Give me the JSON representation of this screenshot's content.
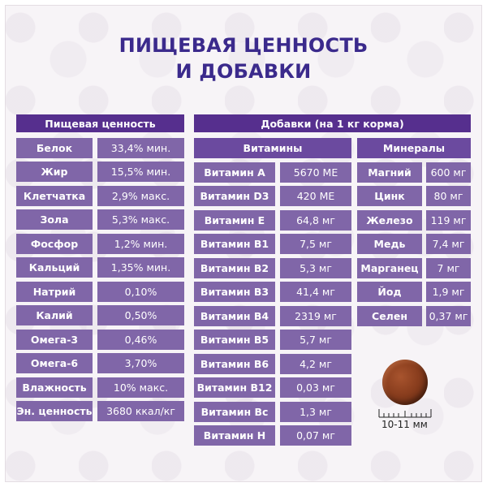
{
  "title": {
    "line1": "ПИЩЕВАЯ ЦЕННОСТЬ",
    "line2": "И ДОБАВКИ"
  },
  "nutrition": {
    "header": "Пищевая ценность",
    "rows": [
      {
        "label": "Белок",
        "value": "33,4% мин."
      },
      {
        "label": "Жир",
        "value": "15,5% мин."
      },
      {
        "label": "Клетчатка",
        "value": "2,9% макс."
      },
      {
        "label": "Зола",
        "value": "5,3% макс."
      },
      {
        "label": "Фосфор",
        "value": "1,2% мин."
      },
      {
        "label": "Кальций",
        "value": "1,35% мин."
      },
      {
        "label": "Натрий",
        "value": "0,10%"
      },
      {
        "label": "Калий",
        "value": "0,50%"
      },
      {
        "label": "Омега-3",
        "value": "0,46%"
      },
      {
        "label": "Омега-6",
        "value": "3,70%"
      },
      {
        "label": "Влажность",
        "value": "10% макс."
      },
      {
        "label": "Эн. ценность",
        "value": "3680 ккал/кг"
      }
    ]
  },
  "additives": {
    "header": "Добавки (на 1 кг корма)",
    "vitamins": {
      "header": "Витамины",
      "rows": [
        {
          "label": "Витамин A",
          "value": "5670 МЕ"
        },
        {
          "label": "Витамин D3",
          "value": "420 МЕ"
        },
        {
          "label": "Витамин E",
          "value": "64,8 мг"
        },
        {
          "label": "Витамин B1",
          "value": "7,5 мг"
        },
        {
          "label": "Витамин B2",
          "value": "5,3 мг"
        },
        {
          "label": "Витамин B3",
          "value": "41,4 мг"
        },
        {
          "label": "Витамин B4",
          "value": "2319 мг"
        },
        {
          "label": "Витамин B5",
          "value": "5,7 мг"
        },
        {
          "label": "Витамин B6",
          "value": "4,2 мг"
        },
        {
          "label": "Витамин B12",
          "value": "0,03 мг"
        },
        {
          "label": "Витамин Bc",
          "value": "1,3 мг"
        },
        {
          "label": "Витамин H",
          "value": "0,07 мг"
        }
      ]
    },
    "minerals": {
      "header": "Минералы",
      "rows": [
        {
          "label": "Магний",
          "value": "600 мг"
        },
        {
          "label": "Цинк",
          "value": "80 мг"
        },
        {
          "label": "Железо",
          "value": "119 мг"
        },
        {
          "label": "Медь",
          "value": "7,4 мг"
        },
        {
          "label": "Марганец",
          "value": "7 мг"
        },
        {
          "label": "Йод",
          "value": "1,9 мг"
        },
        {
          "label": "Селен",
          "value": "0,37 мг"
        }
      ]
    }
  },
  "kibble": {
    "size_label": "10-11 мм"
  },
  "colors": {
    "title": "#3b2a8c",
    "header": "#562f8e",
    "subheader": "#6b4a9f",
    "cell": "#8066a8"
  }
}
